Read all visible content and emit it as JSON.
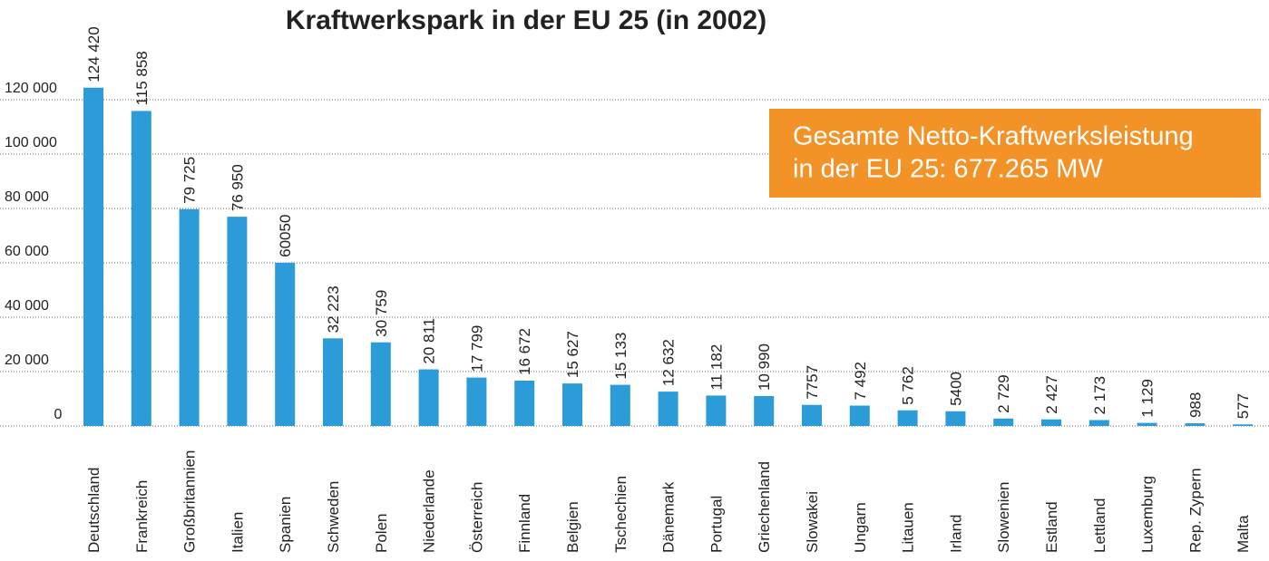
{
  "chart_data": {
    "type": "bar",
    "title": "Kraftwerkspark in der EU 25 (in 2002)",
    "annotation": [
      "Gesamte Netto-Kraftwerksleistung",
      "in der EU 25: 677.265 MW"
    ],
    "categories": [
      "Deutschland",
      "Frankreich",
      "Großbritannien",
      "Italien",
      "Spanien",
      "Schweden",
      "Polen",
      "Niederlande",
      "Österreich",
      "Finnland",
      "Belgien",
      "Tschechien",
      "Dänemark",
      "Portugal",
      "Griechenland",
      "Slowakei",
      "Ungarn",
      "Litauen",
      "Irland",
      "Slowenien",
      "Estland",
      "Lettland",
      "Luxemburg",
      "Rep. Zypern",
      "Malta"
    ],
    "values": [
      124420,
      115858,
      79725,
      76950,
      60050,
      32223,
      30759,
      20811,
      17799,
      16672,
      15627,
      15133,
      12632,
      11182,
      10990,
      7757,
      7492,
      5762,
      5400,
      2729,
      2427,
      2173,
      1129,
      988,
      577
    ],
    "value_labels": [
      "124 420",
      "115 858",
      "79 725",
      "76 950",
      "60050",
      "32 223",
      "30 759",
      "20 811",
      "17 799",
      "16 672",
      "15 627",
      "15 133",
      "12 632",
      "11 182",
      "10 990",
      "7757",
      "7 492",
      "5 762",
      "5400",
      "2 729",
      "2 427",
      "2 173",
      "1 129",
      "988",
      "577"
    ],
    "color": "#2b9cd8",
    "annotation_color": "#f39226",
    "ylim": [
      0,
      120000
    ],
    "yticks": [
      0,
      {
        "value": 20000,
        "label": "20 000"
      },
      {
        "value": 40000,
        "label": "40 000"
      },
      {
        "value": 60000,
        "label": "60 000"
      },
      {
        "value": 80000,
        "label": "80 000"
      },
      {
        "value": 100000,
        "label": "100 000"
      },
      {
        "value": 120000,
        "label": "120 000"
      }
    ],
    "grid": true
  }
}
